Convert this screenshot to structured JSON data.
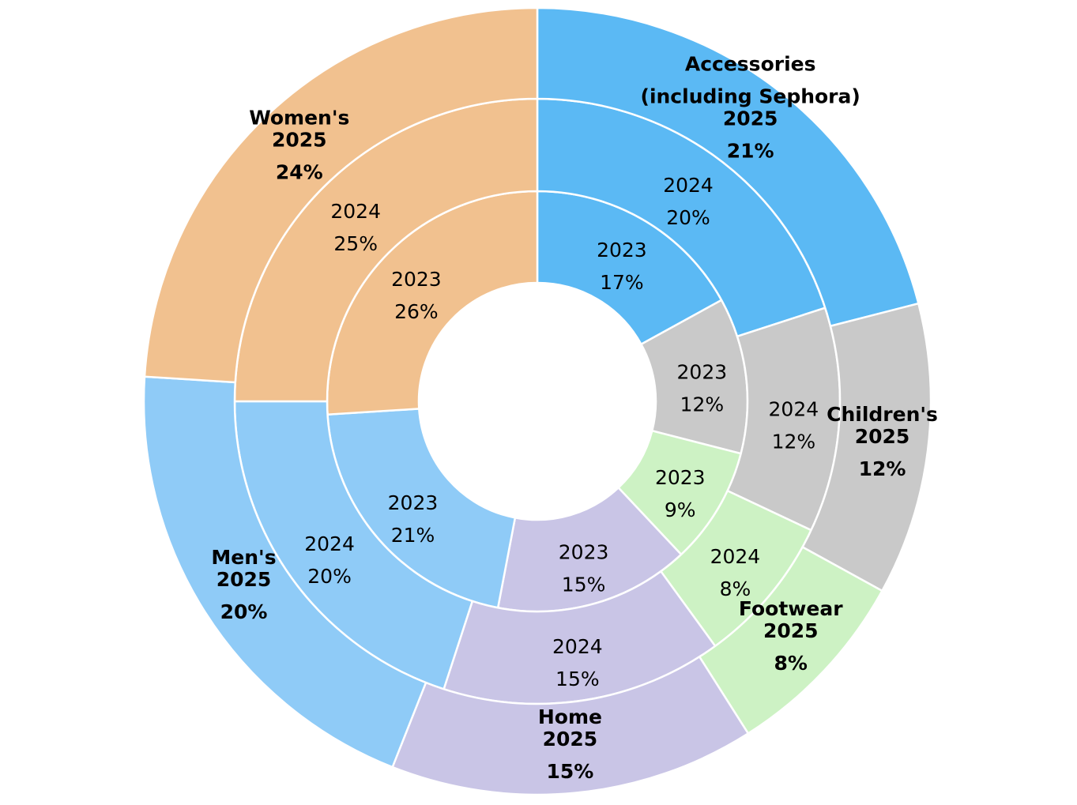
{
  "chart_data": {
    "type": "pie",
    "subtype": "multi-ring donut",
    "categories": [
      "Accessories (including Sephora)",
      "Children's",
      "Footwear",
      "Home",
      "Men's",
      "Women's"
    ],
    "category_lines": [
      [
        "Accessories",
        "(including Sephora)"
      ],
      [
        "Children's"
      ],
      [
        "Footwear"
      ],
      [
        "Home"
      ],
      [
        "Men's"
      ],
      [
        "Women's"
      ]
    ],
    "colors": [
      "#5BB9F4",
      "#C9C9C9",
      "#CDF2C4",
      "#C9C5E6",
      "#8FCBF7",
      "#F1C18F"
    ],
    "series": [
      {
        "name": "2023",
        "ring": "inner",
        "values": [
          17,
          12,
          9,
          15,
          21,
          26
        ]
      },
      {
        "name": "2024",
        "ring": "middle",
        "values": [
          20,
          12,
          8,
          15,
          20,
          25
        ]
      },
      {
        "name": "2025",
        "ring": "outer",
        "values": [
          21,
          12,
          8,
          15,
          20,
          24
        ]
      }
    ],
    "unit": "%"
  }
}
